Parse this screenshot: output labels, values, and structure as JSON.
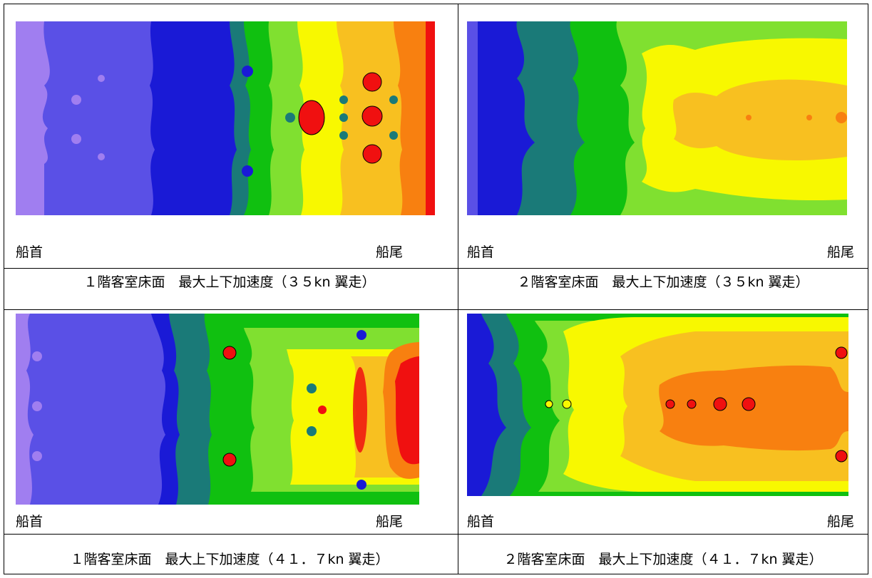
{
  "panels": [
    {
      "bow_label": "船首",
      "stern_label": "船尾",
      "caption": "１階客室床面　最大上下加速度（３５kn 翼走）"
    },
    {
      "bow_label": "船首",
      "stern_label": "船尾",
      "caption": "２階客室床面　最大上下加速度（３５kn 翼走）"
    },
    {
      "bow_label": "船首",
      "stern_label": "船尾",
      "caption": "１階客室床面　最大上下加速度（４１．７kn 翼走）"
    },
    {
      "bow_label": "船首",
      "stern_label": "船尾",
      "caption": "２階客室床面　最大上下加速度（４１．７kn 翼走）"
    }
  ],
  "colors": {
    "violet": "#a07ef0",
    "blue_violet": "#5a50e6",
    "blue": "#1a1ad6",
    "teal": "#1a7a78",
    "green": "#10c010",
    "light_green": "#80e030",
    "yellow": "#f8f800",
    "orange_yellow": "#f8c020",
    "orange": "#f88010",
    "red": "#f01010"
  }
}
